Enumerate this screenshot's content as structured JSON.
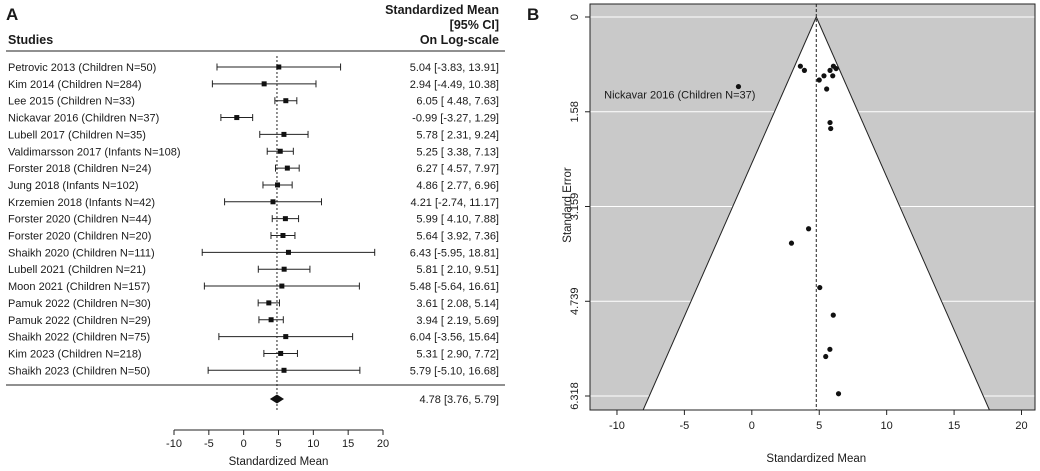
{
  "chart_data": [
    {
      "type": "forest",
      "panel": "A",
      "header": {
        "studies_label": "Studies",
        "effect_label_lines": [
          "Standardized Mean",
          "[95% CI]",
          "On Log-scale"
        ]
      },
      "studies": [
        {
          "label": "Petrovic 2013 (Children N=50)",
          "mean": 5.04,
          "lower": -3.83,
          "upper": 13.91,
          "ci_text": "5.04 [-3.83, 13.91]"
        },
        {
          "label": "Kim 2014 (Children N=284)",
          "mean": 2.94,
          "lower": -4.49,
          "upper": 10.38,
          "ci_text": "2.94 [-4.49, 10.38]"
        },
        {
          "label": "Lee 2015 (Children N=33)",
          "mean": 6.05,
          "lower": 4.48,
          "upper": 7.63,
          "ci_text": "6.05 [ 4.48,  7.63]"
        },
        {
          "label": "Nickavar 2016 (Children N=37)",
          "mean": -0.99,
          "lower": -3.27,
          "upper": 1.29,
          "ci_text": "-0.99 [-3.27,  1.29]"
        },
        {
          "label": "Lubell 2017 (Children N=35)",
          "mean": 5.78,
          "lower": 2.31,
          "upper": 9.24,
          "ci_text": "5.78 [ 2.31,  9.24]"
        },
        {
          "label": "Valdimarsson 2017 (Infants N=108)",
          "mean": 5.25,
          "lower": 3.38,
          "upper": 7.13,
          "ci_text": "5.25 [ 3.38,  7.13]"
        },
        {
          "label": "Forster 2018 (Children N=24)",
          "mean": 6.27,
          "lower": 4.57,
          "upper": 7.97,
          "ci_text": "6.27 [ 4.57,  7.97]"
        },
        {
          "label": "Jung 2018 (Infants N=102)",
          "mean": 4.86,
          "lower": 2.77,
          "upper": 6.96,
          "ci_text": "4.86 [ 2.77,  6.96]"
        },
        {
          "label": "Krzemien 2018 (Infants N=42)",
          "mean": 4.21,
          "lower": -2.74,
          "upper": 11.17,
          "ci_text": "4.21 [-2.74, 11.17]"
        },
        {
          "label": "Forster 2020 (Children N=44)",
          "mean": 5.99,
          "lower": 4.1,
          "upper": 7.88,
          "ci_text": "5.99 [ 4.10,  7.88]"
        },
        {
          "label": "Forster 2020 (Children N=20)",
          "mean": 5.64,
          "lower": 3.92,
          "upper": 7.36,
          "ci_text": "5.64 [ 3.92,  7.36]"
        },
        {
          "label": "Shaikh 2020 (Children N=111)",
          "mean": 6.43,
          "lower": -5.95,
          "upper": 18.81,
          "ci_text": "6.43 [-5.95, 18.81]"
        },
        {
          "label": "Lubell 2021 (Children N=21)",
          "mean": 5.81,
          "lower": 2.1,
          "upper": 9.51,
          "ci_text": "5.81 [ 2.10,  9.51]"
        },
        {
          "label": "Moon 2021 (Children N=157)",
          "mean": 5.48,
          "lower": -5.64,
          "upper": 16.61,
          "ci_text": "5.48 [-5.64, 16.61]"
        },
        {
          "label": "Pamuk 2022 (Children N=30)",
          "mean": 3.61,
          "lower": 2.08,
          "upper": 5.14,
          "ci_text": "3.61 [ 2.08,  5.14]"
        },
        {
          "label": "Pamuk 2022 (Children N=29)",
          "mean": 3.94,
          "lower": 2.19,
          "upper": 5.69,
          "ci_text": "3.94 [ 2.19,  5.69]"
        },
        {
          "label": "Shaikh 2022 (Children N=75)",
          "mean": 6.04,
          "lower": -3.56,
          "upper": 15.64,
          "ci_text": "6.04 [-3.56, 15.64]"
        },
        {
          "label": "Kim 2023 (Children N=218)",
          "mean": 5.31,
          "lower": 2.9,
          "upper": 7.72,
          "ci_text": "5.31 [ 2.90,  7.72]"
        },
        {
          "label": "Shaikh 2023 (Children N=50)",
          "mean": 5.79,
          "lower": -5.1,
          "upper": 16.68,
          "ci_text": "5.79 [-5.10, 16.68]"
        }
      ],
      "summary": {
        "mean": 4.78,
        "lower": 3.76,
        "upper": 5.79,
        "ci_text": "4.78 [3.76, 5.79]"
      },
      "xlim": [
        -10,
        20
      ],
      "xticks": [
        -10,
        -5,
        0,
        5,
        10,
        15,
        20
      ],
      "xlabel": "Standardized Mean"
    },
    {
      "type": "funnel",
      "panel": "B",
      "xlim": [
        -12,
        21
      ],
      "ylim": [
        6.318,
        0
      ],
      "xticks": [
        -10,
        -5,
        0,
        5,
        10,
        15,
        20
      ],
      "yticks": [
        0,
        1.58,
        3.159,
        4.739,
        6.318
      ],
      "ytick_labels": [
        "0",
        "1.58",
        "3.159",
        "4.739",
        "6.318"
      ],
      "xlabel": "Standardized Mean",
      "ylabel": "Standard Error",
      "center": 4.78,
      "grid": true,
      "background_color": "#c9c9c9",
      "points": [
        {
          "x": 3.6,
          "y": 0.82
        },
        {
          "x": 3.9,
          "y": 0.89
        },
        {
          "x": 5.0,
          "y": 1.05
        },
        {
          "x": 5.35,
          "y": 0.98
        },
        {
          "x": 5.55,
          "y": 1.2
        },
        {
          "x": 5.8,
          "y": 0.89
        },
        {
          "x": 6.0,
          "y": 0.98
        },
        {
          "x": 6.05,
          "y": 0.82
        },
        {
          "x": 6.25,
          "y": 0.86
        },
        {
          "x": 5.8,
          "y": 1.76
        },
        {
          "x": 5.85,
          "y": 1.86
        },
        {
          "x": -0.99,
          "y": 1.16
        },
        {
          "x": 4.21,
          "y": 3.53
        },
        {
          "x": 2.94,
          "y": 3.77
        },
        {
          "x": 5.04,
          "y": 4.51
        },
        {
          "x": 6.04,
          "y": 4.97
        },
        {
          "x": 5.79,
          "y": 5.54
        },
        {
          "x": 5.48,
          "y": 5.66
        },
        {
          "x": 6.43,
          "y": 6.28
        }
      ],
      "annotation": {
        "text": "Nickavar 2016 (Children N=37)",
        "x": -0.99,
        "y": 1.16
      }
    }
  ]
}
